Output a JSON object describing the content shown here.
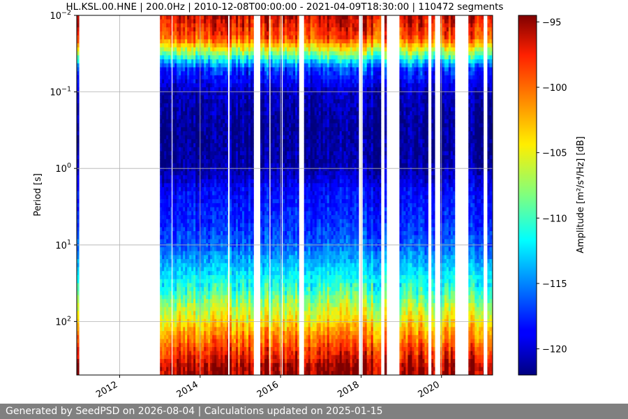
{
  "chart_data": {
    "type": "heatmap",
    "title": "HL.KSL.00.HNE | 200.0Hz | 2010-12-08T00:00:00 - 2021-04-09T18:30:00 | 110472 segments",
    "ylabel": "Period [s]",
    "xlabel": "",
    "colorbar_label": "Amplitude [m²/s⁴/Hz] [dB]",
    "colorbar_ticks": [
      -95,
      -100,
      -105,
      -110,
      -115,
      -120
    ],
    "colorbar_range": [
      -122,
      -94.5
    ],
    "colormap": "jet",
    "x_ticks": [
      "2012",
      "2014",
      "2016",
      "2018",
      "2020"
    ],
    "x_range": [
      "2010-12-08",
      "2021-04-09"
    ],
    "y_scale": "log",
    "y_ticks": [
      {
        "base": "10",
        "exp": "−2",
        "value": 0.01
      },
      {
        "base": "10",
        "exp": "−1",
        "value": 0.1
      },
      {
        "base": "10",
        "exp": "0",
        "value": 1
      },
      {
        "base": "10",
        "exp": "1",
        "value": 10
      },
      {
        "base": "10",
        "exp": "2",
        "value": 100
      }
    ],
    "y_range": [
      0.01,
      500
    ],
    "y_inverted": true,
    "grid": true,
    "data_intervals": [
      [
        "2010-12-08",
        "2010-12-28"
      ],
      [
        "2013-01-01",
        "2013-04-15"
      ],
      [
        "2013-04-25",
        "2014-09-10"
      ],
      [
        "2014-09-25",
        "2015-05-01"
      ],
      [
        "2015-07-01",
        "2015-09-20"
      ],
      [
        "2015-10-01",
        "2016-01-10"
      ],
      [
        "2016-01-20",
        "2016-06-15"
      ],
      [
        "2016-08-01",
        "2017-12-10"
      ],
      [
        "2018-01-15",
        "2018-06-30"
      ],
      [
        "2018-08-01",
        "2018-08-20"
      ],
      [
        "2018-12-15",
        "2019-09-01"
      ],
      [
        "2019-10-01",
        "2019-11-01"
      ],
      [
        "2019-12-20",
        "2020-05-01"
      ],
      [
        "2020-09-01",
        "2021-01-15"
      ],
      [
        "2021-02-20",
        "2021-04-09"
      ]
    ],
    "psd_profile_db": [
      {
        "period": 0.01,
        "amplitude": -96
      },
      {
        "period": 0.02,
        "amplitude": -99
      },
      {
        "period": 0.03,
        "amplitude": -107
      },
      {
        "period": 0.05,
        "amplitude": -117
      },
      {
        "period": 0.1,
        "amplitude": -120.5
      },
      {
        "period": 0.3,
        "amplitude": -121.5
      },
      {
        "period": 1,
        "amplitude": -121
      },
      {
        "period": 2,
        "amplitude": -118.5
      },
      {
        "period": 5,
        "amplitude": -117.5
      },
      {
        "period": 10,
        "amplitude": -116
      },
      {
        "period": 20,
        "amplitude": -113
      },
      {
        "period": 40,
        "amplitude": -110
      },
      {
        "period": 70,
        "amplitude": -106
      },
      {
        "period": 100,
        "amplitude": -104
      },
      {
        "period": 150,
        "amplitude": -101
      },
      {
        "period": 250,
        "amplitude": -98
      },
      {
        "period": 400,
        "amplitude": -95
      }
    ]
  },
  "footer": {
    "text": "Generated by SeedPSD on 2026-08-04 | Calculations updated on 2025-01-15"
  },
  "colors": {
    "grid": "#b0b0b0",
    "footer_bg": "#808080",
    "footer_text": "#ffffff"
  }
}
